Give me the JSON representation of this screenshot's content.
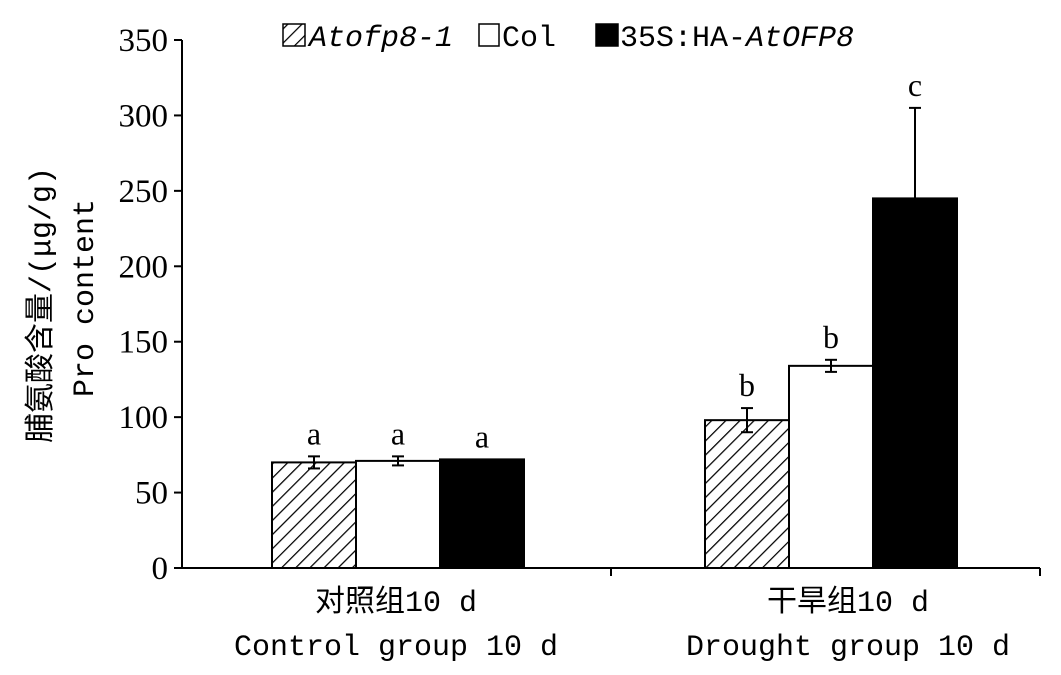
{
  "chart_data": {
    "type": "bar",
    "ylabel_cn": "脯氨酸含量/(μg/g)",
    "ylabel_en": "Pro content",
    "ylim": [
      0,
      350
    ],
    "yticks": [
      0,
      50,
      100,
      150,
      200,
      250,
      300,
      350
    ],
    "categories": [
      {
        "cn": "对照组10 d",
        "en": "Control group 10 d"
      },
      {
        "cn": "干旱组10 d",
        "en": "Drought group 10 d"
      }
    ],
    "series": [
      {
        "name": "Atofp8-1",
        "name_italic": true,
        "pattern": "hatched",
        "values": [
          70,
          98
        ],
        "errors": [
          4,
          8
        ],
        "labels": [
          "a",
          "b"
        ]
      },
      {
        "name": "Col",
        "name_italic": false,
        "pattern": "white",
        "values": [
          71,
          134
        ],
        "errors": [
          3,
          4
        ],
        "labels": [
          "a",
          "b"
        ]
      },
      {
        "name_prefix": "35S:HA-",
        "name_italic_part": "AtOFP8",
        "pattern": "black",
        "values": [
          72,
          245
        ],
        "errors": [
          0,
          60
        ],
        "labels": [
          "a",
          "c"
        ]
      }
    ],
    "legend_position": "top-center",
    "grid": false
  }
}
